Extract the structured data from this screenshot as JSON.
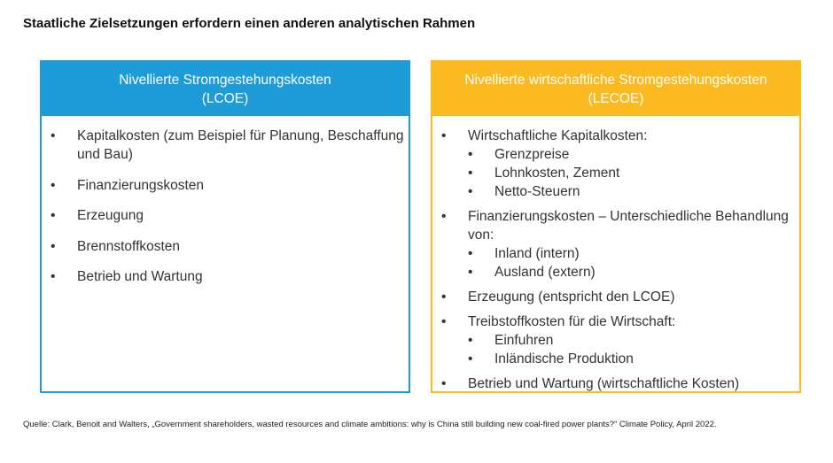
{
  "title": "Staatliche Zielsetzungen erfordern einen anderen analytischen Rahmen",
  "left": {
    "color": "#1E9CD7",
    "header": [
      "Nivellierte Stromgestehungskosten",
      "(LCOE)"
    ],
    "items": [
      "Kapitalkosten (zum Beispiel für Planung, Beschaffung und Bau)",
      "Finanzierungskosten",
      "Erzeugung",
      "Brennstoffkosten",
      "Betrieb und Wartung"
    ]
  },
  "right": {
    "color": "#FBBA1F",
    "header": [
      "Nivellierte wirtschaftliche Stromgestehungskosten",
      "(LECOE)"
    ],
    "items": [
      {
        "text": "Wirtschaftliche Kapitalkosten:",
        "sub": [
          "Grenzpreise",
          "Lohnkosten, Zement",
          "Netto-Steuern"
        ]
      },
      {
        "text": "Finanzierungskosten – Unterschiedliche Behandlung von:",
        "sub": [
          "Inland (intern)",
          "Ausland (extern)"
        ]
      },
      {
        "text": "Erzeugung (entspricht den LCOE)"
      },
      {
        "text": "Treibstoffkosten für die Wirtschaft:",
        "sub": [
          "Einfuhren",
          "Inländische Produktion"
        ]
      },
      {
        "text": "Betrieb und Wartung (wirtschaftliche Kosten)"
      }
    ]
  },
  "source": "Quelle: Clark, Benoit and Walters, „Government shareholders, wasted resources and climate ambitions: why is China still building new coal-fired power plants?“ Climate Policy, April 2022."
}
